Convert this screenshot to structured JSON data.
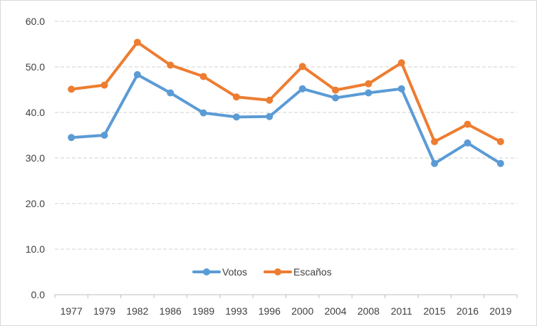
{
  "chart_data": {
    "type": "line",
    "categories": [
      "1977",
      "1979",
      "1982",
      "1986",
      "1989",
      "1993",
      "1996",
      "2000",
      "2004",
      "2008",
      "2011",
      "2015",
      "2016",
      "2019"
    ],
    "series": [
      {
        "name": "Votos",
        "color": "#5B9BD5",
        "values": [
          34.5,
          35.0,
          48.3,
          44.3,
          39.9,
          39.0,
          39.1,
          45.2,
          43.2,
          44.3,
          45.2,
          28.8,
          33.3,
          28.8
        ]
      },
      {
        "name": "Escaños",
        "color": "#ED7D31",
        "values": [
          45.1,
          46.0,
          55.4,
          50.4,
          47.9,
          43.4,
          42.7,
          50.1,
          44.9,
          46.3,
          50.9,
          33.6,
          37.4,
          33.6
        ]
      }
    ],
    "ylim": [
      0,
      60
    ],
    "yticks": [
      "0.0",
      "10.0",
      "20.0",
      "30.0",
      "40.0",
      "50.0",
      "60.0"
    ],
    "grid": true,
    "legend_position": "bottom-center"
  }
}
